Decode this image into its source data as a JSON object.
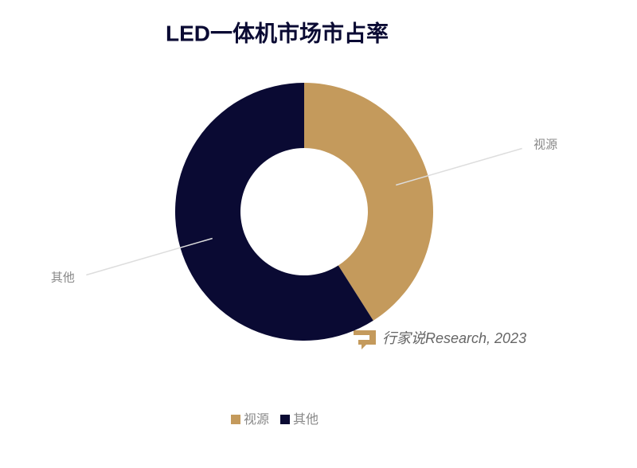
{
  "chart_data": {
    "type": "donut",
    "title": "LED一体机市场市占率",
    "categories": [
      "视源",
      "其他"
    ],
    "values": [
      41,
      59
    ],
    "colors": [
      "#c49a5c",
      "#0a0a33"
    ],
    "source": "行家说Research, 2023"
  }
}
